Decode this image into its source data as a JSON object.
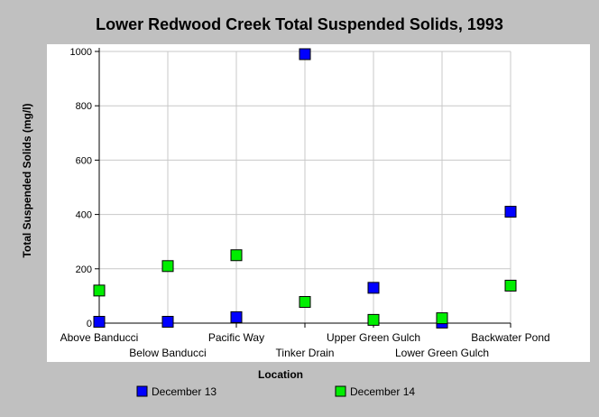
{
  "chart_data": {
    "type": "scatter",
    "title": "Lower Redwood Creek Total Suspended Solids, 1993",
    "xlabel": "Location",
    "ylabel": "Total Suspended Solids (mg/l)",
    "categories": [
      "Above Banducci",
      "Below Banducci",
      "Pacific Way",
      "Tinker Drain",
      "Upper Green Gulch",
      "Lower Green Gulch",
      "Backwater Pond"
    ],
    "ylim": [
      0,
      1000
    ],
    "yticks": [
      0,
      200,
      400,
      600,
      800,
      1000
    ],
    "grid": true,
    "legend_position": "bottom",
    "series": [
      {
        "name": "December 13",
        "color": "#0000ff",
        "values": [
          5,
          5,
          22,
          990,
          130,
          2,
          410
        ]
      },
      {
        "name": "December 14",
        "color": "#00ee00",
        "values": [
          120,
          210,
          250,
          78,
          12,
          18,
          138
        ]
      }
    ]
  }
}
